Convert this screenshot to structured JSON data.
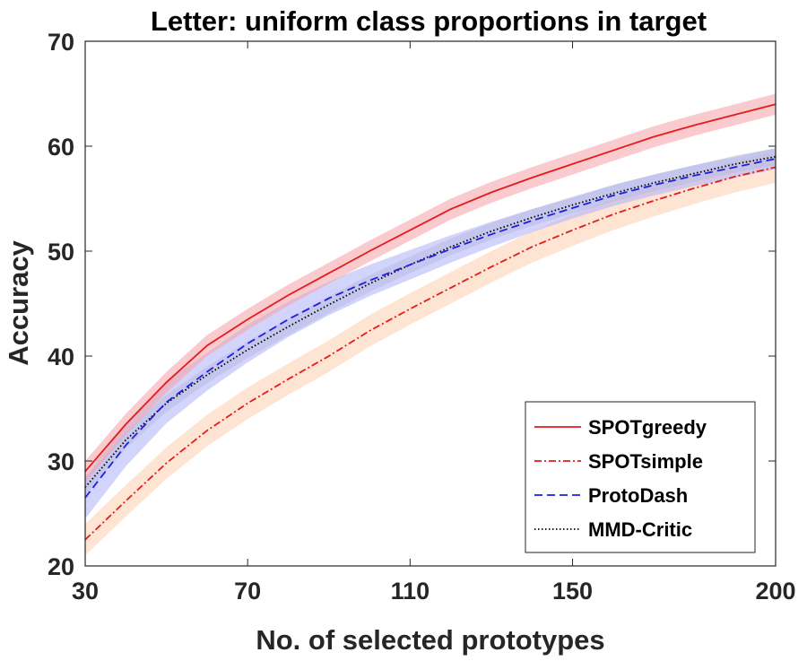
{
  "chart_data": {
    "type": "line",
    "title": "Letter: uniform class proportions in target",
    "xlabel": "No. of selected prototypes",
    "ylabel": "Accuracy",
    "xlim": [
      30,
      200
    ],
    "ylim": [
      20,
      70
    ],
    "xticks": [
      30,
      70,
      110,
      150,
      200
    ],
    "yticks": [
      20,
      30,
      40,
      50,
      60,
      70
    ],
    "grid": false,
    "legend_position": "bottom-right",
    "x": [
      30,
      40,
      50,
      60,
      70,
      80,
      90,
      100,
      110,
      120,
      130,
      140,
      150,
      160,
      170,
      180,
      190,
      200
    ],
    "series": [
      {
        "name": "SPOTgreedy",
        "color": "#e41a1c",
        "band_color": "#f4a0a6",
        "line_style": "solid",
        "values": [
          29.0,
          33.5,
          37.5,
          41.0,
          43.5,
          45.8,
          47.9,
          50.0,
          52.0,
          54.0,
          55.6,
          57.0,
          58.3,
          59.6,
          60.9,
          62.0,
          63.0,
          64.0
        ],
        "band": [
          1.0,
          1.0,
          1.0,
          1.0,
          1.0,
          1.0,
          1.0,
          1.0,
          1.0,
          1.0,
          1.0,
          1.0,
          1.0,
          1.0,
          1.0,
          1.0,
          1.0,
          1.0
        ]
      },
      {
        "name": "SPOTsimple",
        "color": "#e41a1c",
        "band_color": "#fdd0ae",
        "line_style": "dashdot",
        "values": [
          22.5,
          26.2,
          29.8,
          32.9,
          35.5,
          37.8,
          40.0,
          42.4,
          44.5,
          46.5,
          48.5,
          50.4,
          52.0,
          53.5,
          54.8,
          56.0,
          57.1,
          58.0
        ],
        "band": [
          1.5,
          1.5,
          1.5,
          1.5,
          1.5,
          1.5,
          1.5,
          1.5,
          1.5,
          1.5,
          1.5,
          1.5,
          1.5,
          1.5,
          1.5,
          1.5,
          1.5,
          1.5
        ]
      },
      {
        "name": "ProtoDash",
        "color": "#1f1fe0",
        "band_color": "#aeb0f7",
        "line_style": "dashed",
        "values": [
          26.5,
          31.5,
          35.6,
          38.5,
          41.2,
          43.5,
          45.5,
          47.2,
          48.7,
          50.2,
          51.6,
          52.9,
          54.1,
          55.3,
          56.3,
          57.2,
          58.0,
          58.8
        ],
        "band": [
          2.0,
          2.0,
          2.0,
          1.8,
          1.8,
          1.7,
          1.6,
          1.5,
          1.4,
          1.3,
          1.2,
          1.1,
          1.0,
          1.0,
          1.0,
          1.0,
          1.0,
          1.0
        ]
      },
      {
        "name": "MMD-Critic",
        "color": "#000000",
        "band_color": "#c8c8c8",
        "line_style": "dotted",
        "values": [
          27.5,
          32.0,
          35.5,
          38.2,
          40.6,
          42.8,
          44.9,
          46.9,
          48.7,
          50.4,
          51.9,
          53.2,
          54.4,
          55.5,
          56.5,
          57.4,
          58.3,
          59.0
        ],
        "band": [
          0.8,
          0.8,
          0.8,
          0.8,
          0.8,
          0.8,
          0.8,
          0.8,
          0.8,
          0.8,
          0.8,
          0.8,
          0.8,
          0.8,
          0.8,
          0.8,
          0.8,
          0.8
        ]
      }
    ]
  }
}
